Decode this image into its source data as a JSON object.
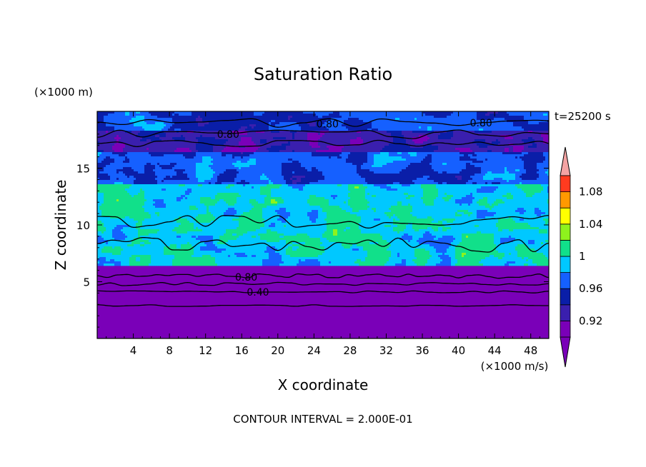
{
  "chart_data": {
    "type": "heatmap",
    "title": "Saturation Ratio",
    "xlabel": "X coordinate",
    "ylabel": "Z coordinate",
    "x_unit": "(×1000 m/s)",
    "y_unit": "(×1000 m)",
    "time_label": "t=25200 s",
    "footer": "CONTOUR INTERVAL = 2.000E-01",
    "xlim": [
      0,
      50
    ],
    "ylim": [
      0,
      20
    ],
    "x_ticks": [
      4,
      8,
      12,
      16,
      20,
      24,
      28,
      32,
      36,
      40,
      44,
      48
    ],
    "y_ticks": [
      5,
      10,
      15
    ],
    "colorbar": {
      "levels": [
        0.9,
        0.92,
        0.94,
        0.96,
        0.98,
        1.0,
        1.02,
        1.04,
        1.06,
        1.08,
        1.1
      ],
      "tick_labels": [
        "0.92",
        "0.96",
        "1",
        "1.04",
        "1.08"
      ],
      "tick_values": [
        0.92,
        0.96,
        1.0,
        1.04,
        1.08
      ],
      "colors": [
        "#7a00b8",
        "#3a1fae",
        "#0a1ea8",
        "#1560ff",
        "#00c8ff",
        "#11e08a",
        "#8ef21d",
        "#ffff00",
        "#ff9900",
        "#ff3b1f"
      ],
      "under_color": "#7a00b8",
      "over_color": "#f4a3a3"
    },
    "contour_labels": [
      "0.80",
      "0.80",
      "0.80",
      "0.80",
      "0.40"
    ]
  }
}
